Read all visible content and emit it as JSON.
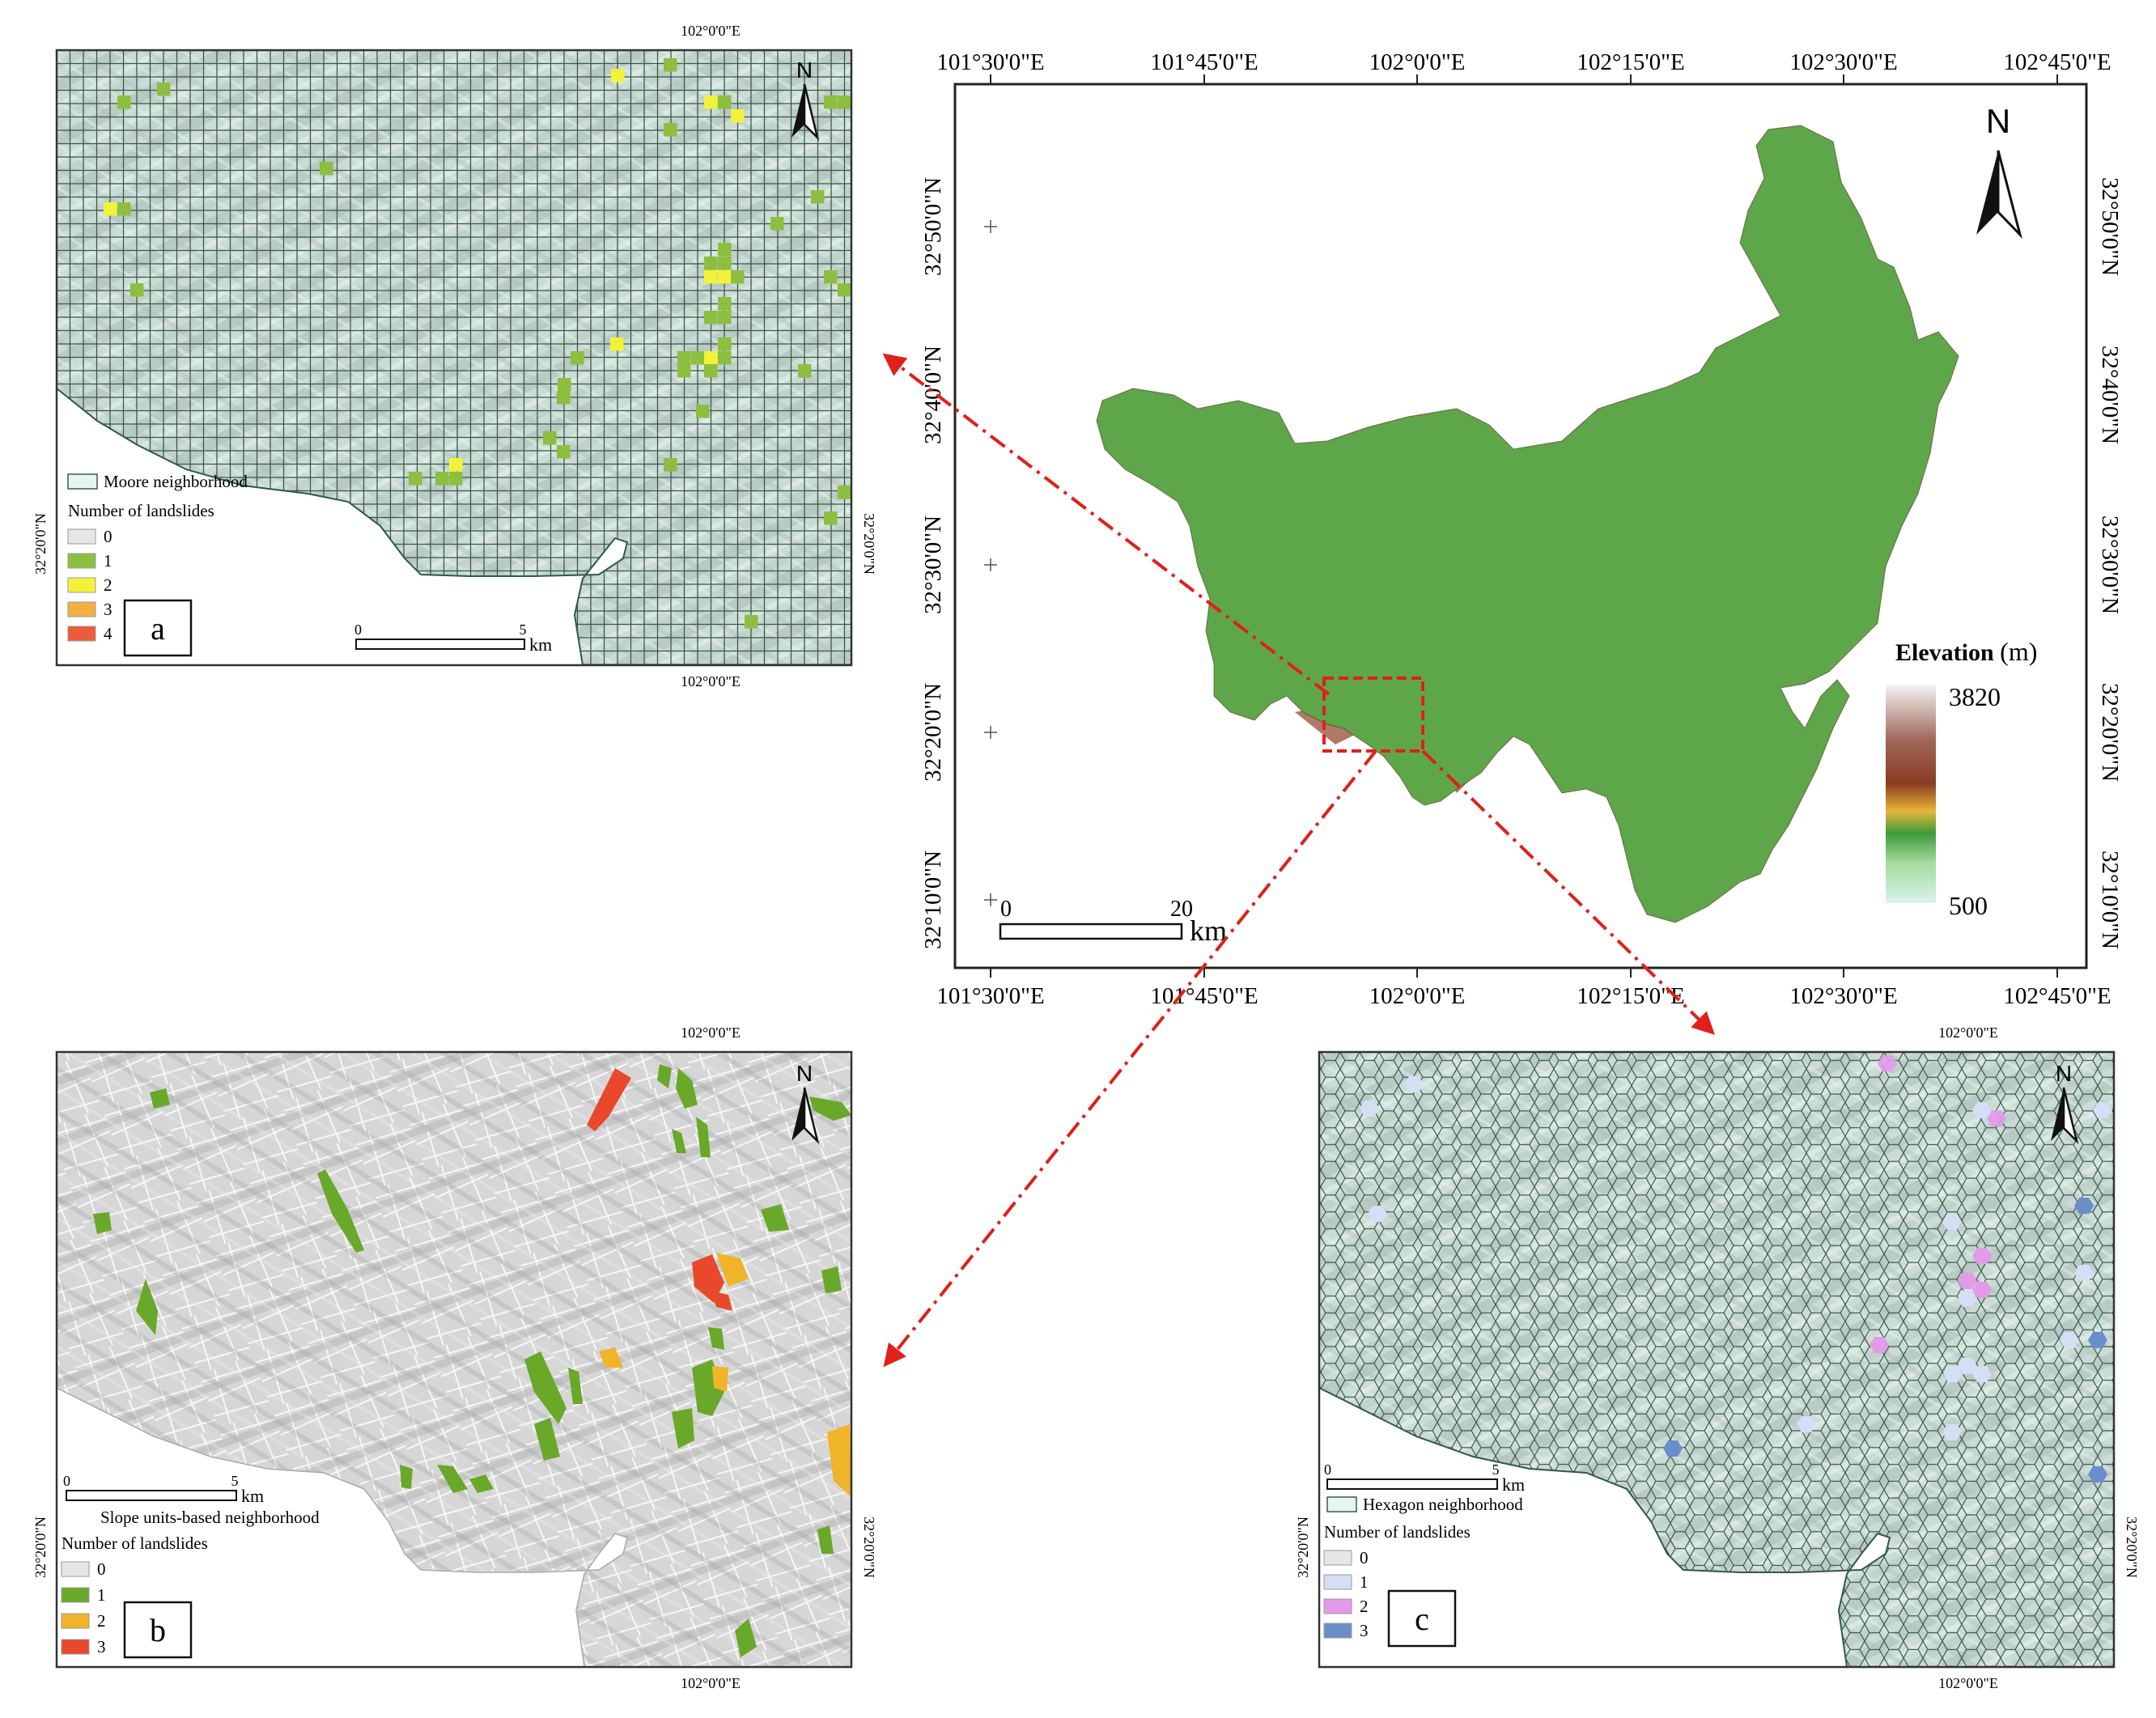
{
  "main_map": {
    "top_lon_labels": [
      "101°30'0\"E",
      "101°45'0\"E",
      "102°0'0\"E",
      "102°15'0\"E",
      "102°30'0\"E",
      "102°45'0\"E"
    ],
    "bottom_lon_labels": [
      "101°30'0\"E",
      "101°45'0\"E",
      "102°0'0\"E",
      "102°15'0\"E",
      "102°30'0\"E",
      "102°45'0\"E"
    ],
    "left_lat_labels": [
      "32°50'0\"N",
      "32°40'0\"N",
      "32°30'0\"N",
      "32°20'0\"N",
      "32°10'0\"N"
    ],
    "right_lat_labels": [
      "32°50'0\"N",
      "32°40'0\"N",
      "32°30'0\"N",
      "32°20'0\"N",
      "32°10'0\"N"
    ],
    "north_label": "N",
    "scale": {
      "zero": "0",
      "value": "20",
      "unit": "km"
    },
    "legend": {
      "title": "Elevation",
      "unit": "(m)",
      "max": "3820",
      "min": "500"
    },
    "colors": {
      "low": "#cfeee6",
      "mid_green": "#3f9a3a",
      "yellow": "#e8d44a",
      "brown": "#8a3a22",
      "high": "#f2f2f2",
      "study_box": "#e0201a"
    }
  },
  "panel_a": {
    "label": "a",
    "top_coord": "102°0'0\"E",
    "bottom_coord": "102°0'0\"E",
    "left_coord": "32°20'0\"N",
    "right_coord": "32°20'0\"N",
    "north_label": "N",
    "neighborhood_label": "Moore neighborhood",
    "legend_title": "Number of landslides",
    "legend_items": [
      {
        "label": "0",
        "color": "#e6e6e6"
      },
      {
        "label": "1",
        "color": "#8cbf3f"
      },
      {
        "label": "2",
        "color": "#f2f23a"
      },
      {
        "label": "3",
        "color": "#f5b042"
      },
      {
        "label": "4",
        "color": "#ee5a3c"
      }
    ],
    "scale": {
      "zero": "0",
      "value": "5",
      "unit": "km"
    }
  },
  "panel_b": {
    "label": "b",
    "top_coord": "102°0'0\"E",
    "bottom_coord": "102°0'0\"E",
    "left_coord": "32°20'0\"N",
    "right_coord": "32°20'0\"N",
    "north_label": "N",
    "neighborhood_label": "Slope units-based neighborhood",
    "legend_title": "Number of landslides",
    "legend_items": [
      {
        "label": "0",
        "color": "#e6e6e6"
      },
      {
        "label": "1",
        "color": "#6aa82a"
      },
      {
        "label": "2",
        "color": "#f0b428"
      },
      {
        "label": "3",
        "color": "#e8492c"
      }
    ],
    "scale": {
      "zero": "0",
      "value": "5",
      "unit": "km"
    }
  },
  "panel_c": {
    "label": "c",
    "top_coord": "102°0'0\"E",
    "bottom_coord": "102°0'0\"E",
    "left_coord": "32°20'0\"N",
    "right_coord": "32°20'0\"N",
    "north_label": "N",
    "neighborhood_label": "Hexagon neighborhood",
    "legend_title": "Number of landslides",
    "legend_items": [
      {
        "label": "0",
        "color": "#e6e6e6"
      },
      {
        "label": "1",
        "color": "#d4def5"
      },
      {
        "label": "2",
        "color": "#e39ae8"
      },
      {
        "label": "3",
        "color": "#6a8ec9"
      }
    ],
    "scale": {
      "zero": "0",
      "value": "5",
      "unit": "km"
    }
  }
}
